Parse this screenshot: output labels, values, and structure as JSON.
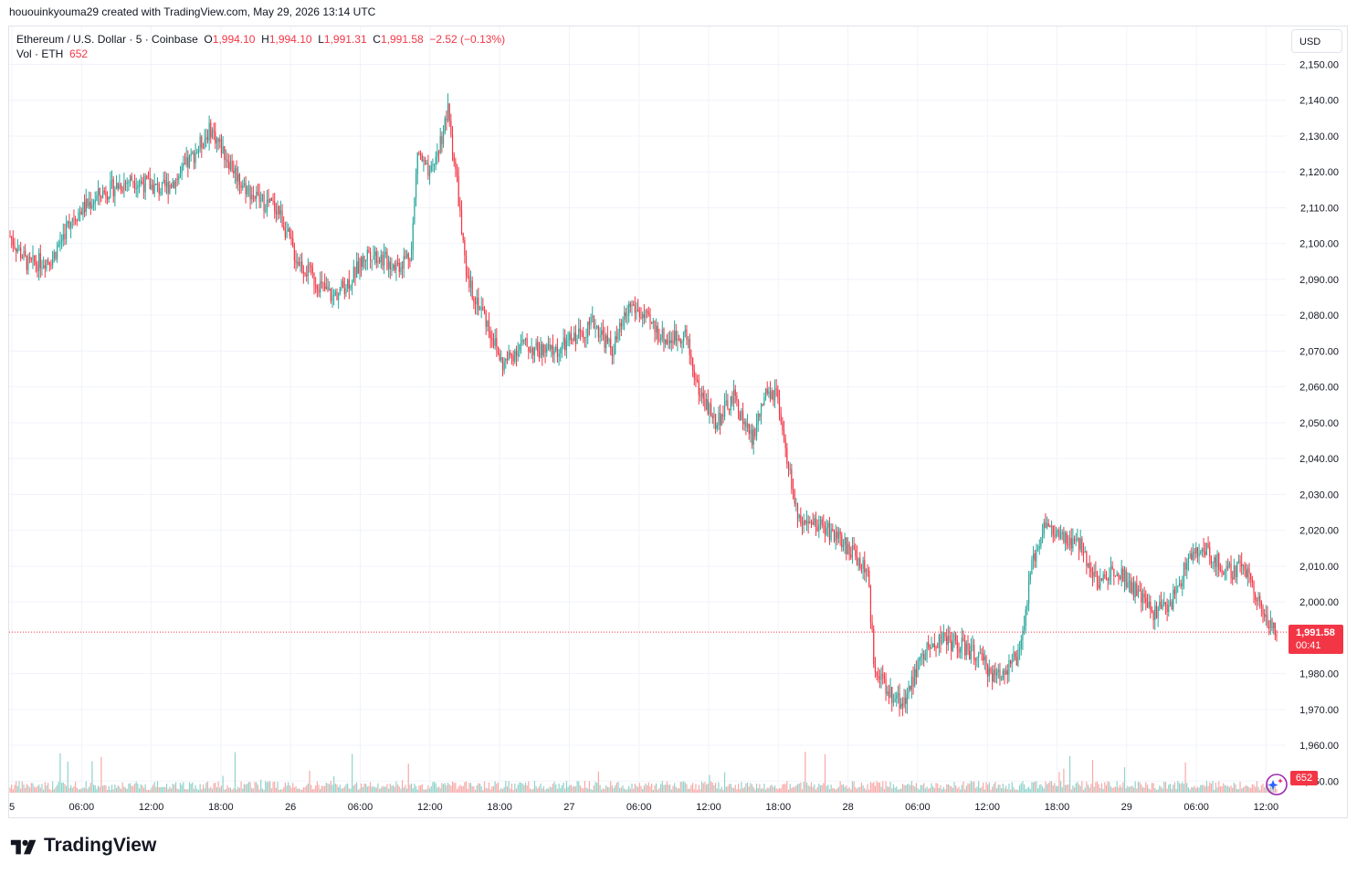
{
  "header": {
    "credit": "hououinkyouma29 created with TradingView.com, May 29, 2026 13:14 UTC"
  },
  "legend": {
    "symbol": "Ethereum / U.S. Dollar · 5 · Coinbase",
    "open_label": "O",
    "open": "1,994.10",
    "high_label": "H",
    "high": "1,994.10",
    "low_label": "L",
    "low": "1,991.31",
    "close_label": "C",
    "close": "1,991.58",
    "change": "−2.52 (−0.13%)",
    "volume_label": "Vol · ETH",
    "volume": "652"
  },
  "currency_button": "USD",
  "last_price": {
    "price": "1,991.58",
    "countdown": "00:41",
    "value": 1991.58
  },
  "volume_badge": "652",
  "brand": {
    "name": "TradingView"
  },
  "colors": {
    "up": "#26a69a",
    "down": "#f23645",
    "up_vol": "#8fd3ca",
    "down_vol": "#f7a9a7",
    "grid": "#f0f3fa"
  },
  "icons": {
    "logo": "tradingview-logo-icon",
    "magic": "sparkle-magic-icon"
  },
  "chart_data": {
    "type": "candlestick",
    "title": "Ethereum / U.S. Dollar · 5 · Coinbase",
    "interval": "5",
    "exchange": "Coinbase",
    "y_ticks": [
      "2,150.00",
      "2,140.00",
      "2,130.00",
      "2,120.00",
      "2,110.00",
      "2,100.00",
      "2,090.00",
      "2,080.00",
      "2,070.00",
      "2,060.00",
      "2,050.00",
      "2,040.00",
      "2,030.00",
      "2,020.00",
      "2,010.00",
      "2,000.00",
      "1,980.00",
      "1,970.00",
      "1,960.00",
      "1,950.00"
    ],
    "ylim": [
      1948,
      2160
    ],
    "x_ticks": [
      "5",
      "06:00",
      "12:00",
      "18:00",
      "26",
      "06:00",
      "12:00",
      "18:00",
      "27",
      "06:00",
      "12:00",
      "18:00",
      "28",
      "06:00",
      "12:00",
      "18:00",
      "29",
      "06:00",
      "12:00"
    ],
    "price_path": [
      [
        0,
        2102
      ],
      [
        12,
        2094
      ],
      [
        28,
        2096
      ],
      [
        40,
        2107
      ],
      [
        60,
        2114
      ],
      [
        80,
        2118
      ],
      [
        100,
        2115
      ],
      [
        112,
        2119
      ],
      [
        124,
        2127
      ],
      [
        132,
        2132
      ],
      [
        140,
        2126
      ],
      [
        152,
        2117
      ],
      [
        164,
        2112
      ],
      [
        176,
        2110
      ],
      [
        188,
        2096
      ],
      [
        200,
        2090
      ],
      [
        212,
        2085
      ],
      [
        224,
        2090
      ],
      [
        236,
        2098
      ],
      [
        248,
        2095
      ],
      [
        256,
        2094
      ],
      [
        264,
        2098
      ],
      [
        268,
        2126
      ],
      [
        276,
        2118
      ],
      [
        284,
        2130
      ],
      [
        288,
        2137
      ],
      [
        294,
        2117
      ],
      [
        300,
        2090
      ],
      [
        312,
        2080
      ],
      [
        324,
        2066
      ],
      [
        336,
        2072
      ],
      [
        348,
        2070
      ],
      [
        360,
        2070
      ],
      [
        372,
        2074
      ],
      [
        384,
        2078
      ],
      [
        396,
        2070
      ],
      [
        408,
        2083
      ],
      [
        420,
        2078
      ],
      [
        432,
        2073
      ],
      [
        444,
        2075
      ],
      [
        452,
        2060
      ],
      [
        464,
        2050
      ],
      [
        476,
        2057
      ],
      [
        488,
        2045
      ],
      [
        496,
        2057
      ],
      [
        504,
        2058
      ],
      [
        508,
        2046
      ],
      [
        520,
        2020
      ],
      [
        532,
        2022
      ],
      [
        544,
        2018
      ],
      [
        556,
        2013
      ],
      [
        564,
        2008
      ],
      [
        568,
        1984
      ],
      [
        576,
        1975
      ],
      [
        588,
        1972
      ],
      [
        600,
        1985
      ],
      [
        612,
        1990
      ],
      [
        624,
        1988
      ],
      [
        636,
        1985
      ],
      [
        648,
        1979
      ],
      [
        656,
        1982
      ],
      [
        664,
        1985
      ],
      [
        672,
        2010
      ],
      [
        680,
        2022
      ],
      [
        692,
        2017
      ],
      [
        704,
        2016
      ],
      [
        716,
        2005
      ],
      [
        728,
        2010
      ],
      [
        740,
        2003
      ],
      [
        752,
        1997
      ],
      [
        764,
        2000
      ],
      [
        776,
        2013
      ],
      [
        788,
        2014
      ],
      [
        800,
        2008
      ],
      [
        812,
        2010
      ],
      [
        820,
        2002
      ],
      [
        828,
        1993
      ],
      [
        833,
        1992
      ]
    ],
    "series": [
      {
        "name": "Ethereum / U.S. Dollar",
        "last": 1991.58
      },
      {
        "name": "Vol · ETH",
        "last": 652
      }
    ]
  }
}
